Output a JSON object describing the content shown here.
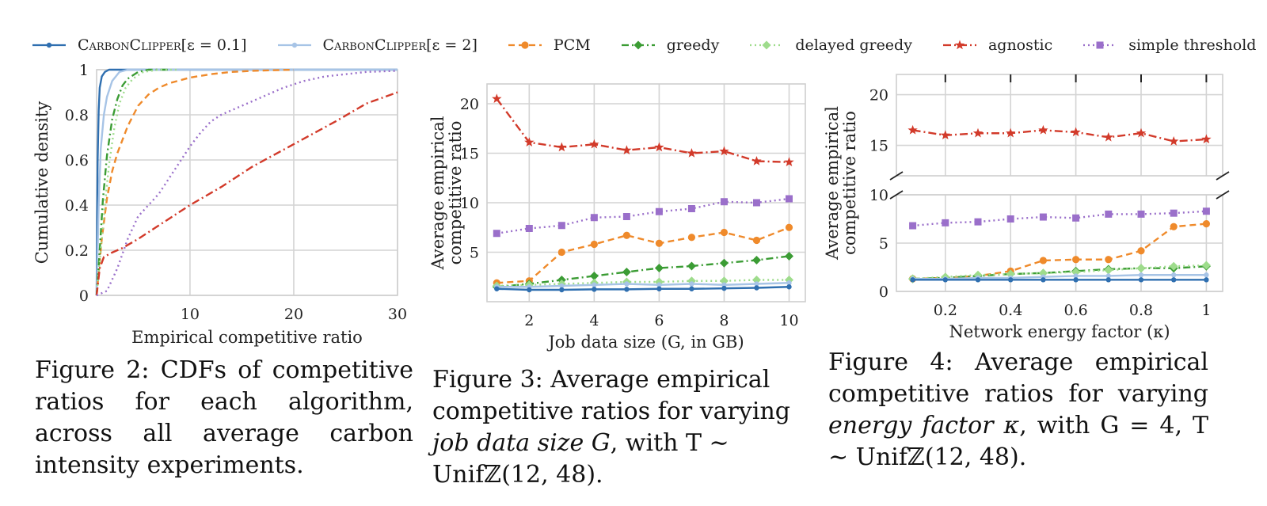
{
  "legend": [
    {
      "key": "cc01",
      "label_prefix": "CarbonClipper",
      "label_suffix": "[ε = 0.1]",
      "color": "#2f6fb0",
      "dash": "",
      "marker": "dot"
    },
    {
      "key": "cc2",
      "label_prefix": "CarbonClipper",
      "label_suffix": "[ε = 2]",
      "color": "#a7c4e6",
      "dash": "",
      "marker": "dot"
    },
    {
      "key": "pcm",
      "label": "PCM",
      "color": "#ef8a2b",
      "dash": "8,5",
      "marker": "circle"
    },
    {
      "key": "greedy",
      "label": "greedy",
      "color": "#3b9c34",
      "dash": "9,4,2,4",
      "marker": "diamond"
    },
    {
      "key": "delayed",
      "label": "delayed greedy",
      "color": "#9edc8c",
      "dash": "2,4",
      "marker": "diamond"
    },
    {
      "key": "agnostic",
      "label": "agnostic",
      "color": "#d23a2a",
      "dash": "10,4,2,4",
      "marker": "star"
    },
    {
      "key": "threshold",
      "label": "simple threshold",
      "color": "#9a6fca",
      "dash": "2,4",
      "marker": "square"
    }
  ],
  "chart_data": [
    {
      "id": "fig2",
      "type": "line",
      "xlabel": "Empirical competitive ratio",
      "ylabel": "Cumulative density",
      "xlim": [
        1,
        30
      ],
      "ylim": [
        0,
        1
      ],
      "xticks": [
        10,
        20,
        30
      ],
      "yticks": [
        0.0,
        0.2,
        0.4,
        0.6,
        0.8,
        1.0
      ],
      "grid": true,
      "series": [
        {
          "key": "cc01",
          "x": [
            1.0,
            1.05,
            1.1,
            1.2,
            1.3,
            1.5,
            1.8,
            2.2,
            3,
            30
          ],
          "y": [
            0.0,
            0.35,
            0.6,
            0.82,
            0.92,
            0.97,
            0.99,
            1.0,
            1.0,
            1.0
          ]
        },
        {
          "key": "cc2",
          "x": [
            1.0,
            1.1,
            1.2,
            1.4,
            1.7,
            2.0,
            2.5,
            3.2,
            4,
            30
          ],
          "y": [
            0.0,
            0.2,
            0.4,
            0.65,
            0.8,
            0.88,
            0.95,
            0.99,
            1.0,
            1.0
          ]
        },
        {
          "key": "pcm",
          "x": [
            1.0,
            1.5,
            2.0,
            2.5,
            3,
            4,
            5,
            6,
            7,
            8,
            10,
            12,
            14,
            16,
            20
          ],
          "y": [
            0.0,
            0.25,
            0.43,
            0.55,
            0.63,
            0.75,
            0.84,
            0.89,
            0.92,
            0.94,
            0.965,
            0.98,
            0.99,
            0.995,
            1.0
          ]
        },
        {
          "key": "greedy",
          "x": [
            1.0,
            1.3,
            1.6,
            2.0,
            2.5,
            3.0,
            3.5,
            4.0,
            5.0,
            6,
            8
          ],
          "y": [
            0.0,
            0.2,
            0.42,
            0.62,
            0.78,
            0.87,
            0.93,
            0.96,
            0.99,
            1.0,
            1.0
          ]
        },
        {
          "key": "delayed",
          "x": [
            1.0,
            1.4,
            1.8,
            2.2,
            2.7,
            3.2,
            3.8,
            4.5,
            5.5,
            7,
            9
          ],
          "y": [
            0.0,
            0.2,
            0.4,
            0.58,
            0.74,
            0.85,
            0.92,
            0.96,
            0.99,
            1.0,
            1.0
          ]
        },
        {
          "key": "agnostic",
          "x": [
            1.0,
            1.3,
            1.7,
            2.5,
            3.5,
            5,
            7,
            10,
            13,
            16,
            20,
            24,
            27,
            30
          ],
          "y": [
            0.0,
            0.12,
            0.17,
            0.19,
            0.21,
            0.25,
            0.31,
            0.4,
            0.48,
            0.57,
            0.67,
            0.77,
            0.85,
            0.9
          ]
        },
        {
          "key": "threshold",
          "x": [
            1.0,
            2,
            3,
            4,
            5,
            6,
            7,
            8,
            9,
            10,
            11,
            12,
            13,
            15,
            17,
            19,
            21,
            23,
            25,
            27,
            30
          ],
          "y": [
            0.0,
            0.02,
            0.12,
            0.25,
            0.35,
            0.4,
            0.45,
            0.52,
            0.59,
            0.66,
            0.72,
            0.77,
            0.8,
            0.84,
            0.88,
            0.92,
            0.95,
            0.97,
            0.98,
            0.99,
            0.995
          ]
        }
      ]
    },
    {
      "id": "fig3",
      "type": "line",
      "xlabel": "Job data size (G, in GB)",
      "ylabel_line1": "Average empirical",
      "ylabel_line2": "competitive ratio",
      "xlim": [
        0.7,
        10.5
      ],
      "ylim": [
        0,
        22
      ],
      "xticks": [
        2,
        4,
        6,
        8,
        10
      ],
      "yticks": [
        5,
        10,
        15,
        20
      ],
      "grid": true,
      "x": [
        1,
        2,
        3,
        4,
        5,
        6,
        7,
        8,
        9,
        10
      ],
      "series": [
        {
          "key": "agnostic",
          "values": [
            20.5,
            16.1,
            15.6,
            15.9,
            15.3,
            15.6,
            15.0,
            15.2,
            14.2,
            14.1
          ]
        },
        {
          "key": "threshold",
          "values": [
            6.9,
            7.4,
            7.7,
            8.5,
            8.6,
            9.1,
            9.4,
            10.1,
            10.0,
            10.4
          ]
        },
        {
          "key": "pcm",
          "values": [
            1.9,
            2.1,
            5.0,
            5.8,
            6.7,
            5.9,
            6.5,
            7.0,
            6.2,
            7.5
          ]
        },
        {
          "key": "greedy",
          "values": [
            1.5,
            1.8,
            2.2,
            2.6,
            3.0,
            3.4,
            3.6,
            3.9,
            4.2,
            4.6
          ]
        },
        {
          "key": "delayed",
          "values": [
            1.6,
            1.7,
            1.8,
            1.9,
            2.0,
            2.0,
            2.1,
            2.1,
            2.2,
            2.2
          ]
        },
        {
          "key": "cc2",
          "values": [
            1.5,
            1.5,
            1.6,
            1.7,
            1.8,
            1.7,
            1.8,
            1.7,
            1.8,
            1.9
          ]
        },
        {
          "key": "cc01",
          "values": [
            1.3,
            1.2,
            1.2,
            1.25,
            1.25,
            1.3,
            1.3,
            1.35,
            1.4,
            1.5
          ]
        }
      ]
    },
    {
      "id": "fig4",
      "type": "line",
      "broken_y_axis": true,
      "xlabel": "Network energy factor (κ)",
      "ylabel_line1": "Average empirical",
      "ylabel_line2": "competitive ratio",
      "xlim": [
        0.05,
        1.05
      ],
      "xticks": [
        0.2,
        0.4,
        0.6,
        0.8,
        1.0
      ],
      "upper_ylim": [
        12,
        22
      ],
      "upper_yticks": [
        15,
        20
      ],
      "lower_ylim": [
        0,
        10
      ],
      "lower_yticks": [
        0,
        5,
        10
      ],
      "grid": true,
      "x": [
        0.1,
        0.2,
        0.3,
        0.4,
        0.5,
        0.6,
        0.7,
        0.8,
        0.9,
        1.0
      ],
      "series": [
        {
          "key": "agnostic",
          "values": [
            16.5,
            16.0,
            16.2,
            16.2,
            16.5,
            16.3,
            15.8,
            16.2,
            15.4,
            15.6
          ]
        },
        {
          "key": "threshold",
          "values": [
            6.8,
            7.1,
            7.2,
            7.5,
            7.7,
            7.6,
            8.0,
            8.0,
            8.1,
            8.3
          ]
        },
        {
          "key": "pcm",
          "values": [
            1.3,
            1.4,
            1.6,
            2.1,
            3.2,
            3.3,
            3.3,
            4.2,
            6.7,
            7.0
          ]
        },
        {
          "key": "greedy",
          "values": [
            1.3,
            1.4,
            1.6,
            1.8,
            1.9,
            2.1,
            2.3,
            2.4,
            2.4,
            2.6
          ]
        },
        {
          "key": "delayed",
          "values": [
            1.3,
            1.5,
            1.7,
            1.8,
            1.9,
            2.0,
            2.2,
            2.4,
            2.6,
            2.7
          ]
        },
        {
          "key": "cc2",
          "values": [
            1.3,
            1.3,
            1.4,
            1.4,
            1.5,
            1.6,
            1.6,
            1.7,
            1.7,
            1.7
          ]
        },
        {
          "key": "cc01",
          "values": [
            1.2,
            1.2,
            1.2,
            1.2,
            1.2,
            1.2,
            1.2,
            1.2,
            1.2,
            1.2
          ]
        }
      ]
    }
  ],
  "captions": {
    "fig2": "Figure 2: CDFs of competitive ratios for each algorithm, across all average carbon intensity experiments.",
    "fig3_pre": "Figure 3: Average empirical competitive ratios for varying ",
    "fig3_em1": "job data size G",
    "fig3_post": ", with T ∼ Unifℤ(12, 48).",
    "fig4_pre": "Figure 4: Average empirical competitive ratios for varying ",
    "fig4_em1": "energy factor κ",
    "fig4_post": ", with G = 4, T ∼ Unifℤ(12, 48)."
  }
}
